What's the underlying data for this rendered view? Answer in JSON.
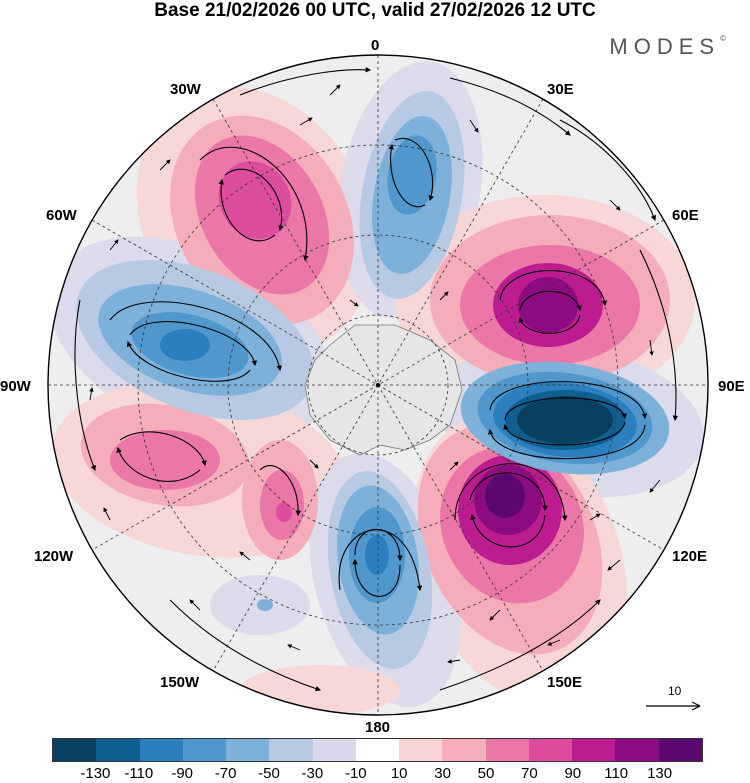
{
  "header": {
    "title": "Base 21/02/2026 00 UTC, valid 27/02/2026 12 UTC",
    "brand": "MODES",
    "brand_mark": "©"
  },
  "map": {
    "projection": "south-polar-stereographic",
    "longitude_labels": {
      "top": "0",
      "top_right": "30E",
      "upper_right": "60E",
      "right": "90E",
      "lower_right": "120E",
      "bottom_right": "150E",
      "bottom": "180",
      "bottom_left": "150W",
      "lower_left": "120W",
      "left": "90W",
      "upper_left": "60W",
      "top_left": "30W"
    },
    "reference_vector": {
      "label": "10"
    }
  },
  "colorbar": {
    "ticks": [
      "-130",
      "-110",
      "-90",
      "-70",
      "-50",
      "-30",
      "-10",
      "10",
      "30",
      "50",
      "70",
      "90",
      "110",
      "130"
    ],
    "colors": [
      "#08405f",
      "#0f5f91",
      "#2b7fbf",
      "#4f97cc",
      "#7eb1d9",
      "#b7c9e3",
      "#dad9ec",
      "#ffffff",
      "#f9d4d4",
      "#f4adb9",
      "#eb76a8",
      "#de4c9e",
      "#bd1c91",
      "#8c0b80",
      "#5b0770"
    ]
  }
}
